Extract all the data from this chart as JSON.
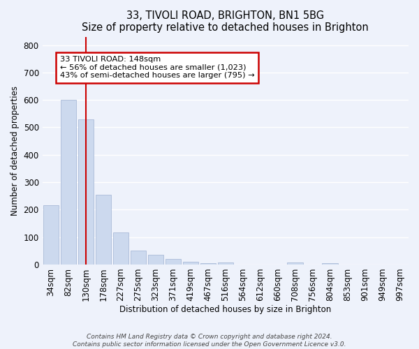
{
  "title": "33, TIVOLI ROAD, BRIGHTON, BN1 5BG",
  "subtitle": "Size of property relative to detached houses in Brighton",
  "xlabel": "Distribution of detached houses by size in Brighton",
  "ylabel": "Number of detached properties",
  "bar_labels": [
    "34sqm",
    "82sqm",
    "130sqm",
    "178sqm",
    "227sqm",
    "275sqm",
    "323sqm",
    "371sqm",
    "419sqm",
    "467sqm",
    "516sqm",
    "564sqm",
    "612sqm",
    "660sqm",
    "708sqm",
    "756sqm",
    "804sqm",
    "853sqm",
    "901sqm",
    "949sqm",
    "997sqm"
  ],
  "bar_values": [
    215,
    600,
    530,
    255,
    118,
    50,
    35,
    20,
    10,
    5,
    7,
    0,
    0,
    0,
    7,
    0,
    5,
    0,
    0,
    0,
    0
  ],
  "bar_color": "#ccd9ee",
  "bar_edge_color": "#aabbd8",
  "vline_x": 2.0,
  "vline_color": "#cc0000",
  "annotation_line1": "33 TIVOLI ROAD: 148sqm",
  "annotation_line2": "← 56% of detached houses are smaller (1,023)",
  "annotation_line3": "43% of semi-detached houses are larger (795) →",
  "annotation_box_color": "#ffffff",
  "annotation_box_edge": "#cc0000",
  "ylim": [
    0,
    830
  ],
  "yticks": [
    0,
    100,
    200,
    300,
    400,
    500,
    600,
    700,
    800
  ],
  "footer": "Contains HM Land Registry data © Crown copyright and database right 2024.\nContains public sector information licensed under the Open Government Licence v3.0.",
  "bg_color": "#eef2fb",
  "grid_color": "#ffffff"
}
